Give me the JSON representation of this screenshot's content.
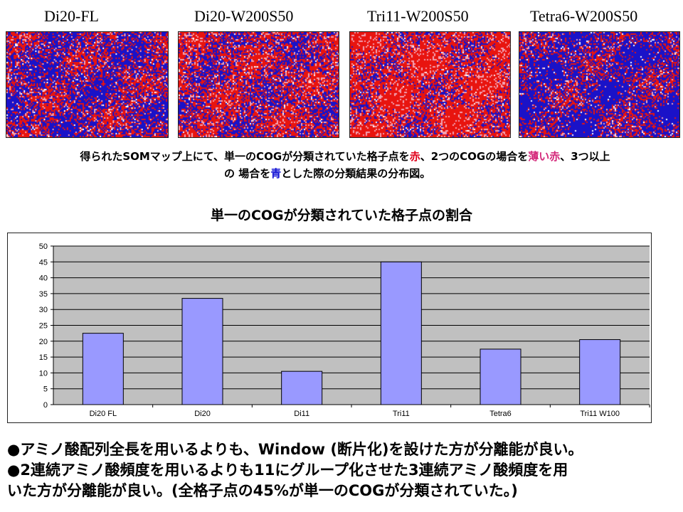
{
  "maps": [
    {
      "title": "Di20-FL",
      "red": 0.46
    },
    {
      "title": "Di20-W200S50",
      "red": 0.62
    },
    {
      "title": "Tri11-W200S50",
      "red": 0.78
    },
    {
      "title": "Tetra6-W200S50",
      "red": 0.33
    }
  ],
  "caption": {
    "line1_a": "得られたSOMマップ上にて、単一のCOGが分類されていた格子点を",
    "red_word": "赤",
    "line1_b": "、2つのCOGの場合を",
    "pink_word": "薄い赤",
    "line1_c": "、3つ以上",
    "line2_a": "の 場合を",
    "blue_word": "青",
    "line2_b": "とした際の分類結果の分布図。"
  },
  "colors": {
    "map_red": "#e8140f",
    "map_blue": "#1a12c8",
    "bar_fill": "#9999ff",
    "plot_bg": "#c0c0c0"
  },
  "chart_data": {
    "type": "bar",
    "title": "単一のCOGが分類されていた格子点の割合",
    "categories": [
      "Di20 FL",
      "Di20",
      "Di11",
      "Tri11",
      "Tetra6",
      "Tri11 W100"
    ],
    "values": [
      22.5,
      33.5,
      10.5,
      45.0,
      17.5,
      20.5
    ],
    "yticks": [
      "0",
      "5",
      "10",
      "15",
      "20",
      "25",
      "30",
      "35",
      "40",
      "45",
      "50"
    ],
    "ylim": [
      0,
      50
    ],
    "xlabel": "",
    "ylabel": "",
    "grid": true
  },
  "bullets": [
    "●アミノ酸配列全長を用いるよりも、Window (断片化)を設けた方が分離能が良い。",
    "●2連続アミノ酸頻度を用いるよりも11にグループ化させた3連続アミノ酸頻度を用",
    "いた方が分離能が良い。(全格子点の45%が単一のCOGが分類されていた。)"
  ]
}
